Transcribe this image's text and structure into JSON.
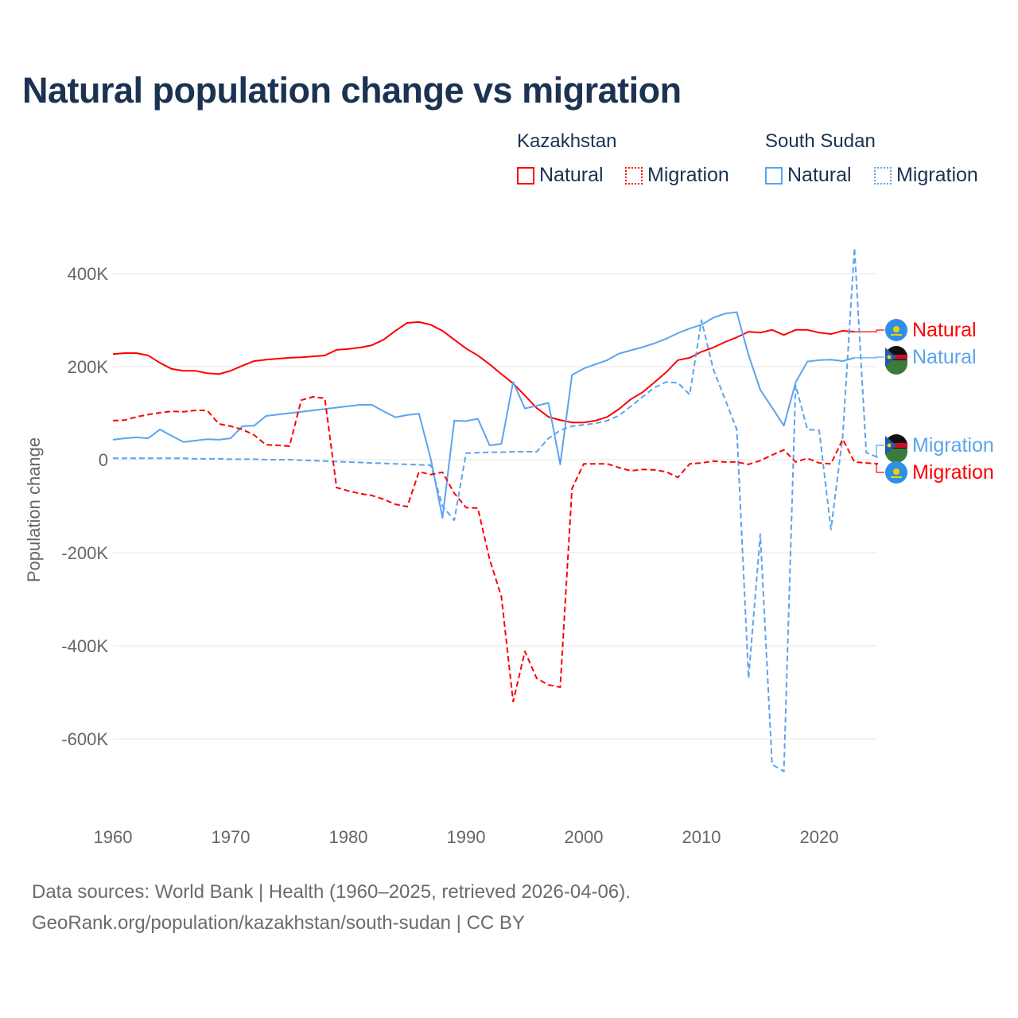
{
  "title": "Natural population change vs migration",
  "legend": {
    "groups": [
      {
        "name": "Kazakhstan",
        "items": [
          {
            "label": "Natural",
            "style": "solid"
          },
          {
            "label": "Migration",
            "style": "dotted"
          }
        ],
        "color": "#ff0000"
      },
      {
        "name": "South Sudan",
        "items": [
          {
            "label": "Natural",
            "style": "solid"
          },
          {
            "label": "Migration",
            "style": "dotted"
          }
        ],
        "color": "#5ba4ee"
      }
    ]
  },
  "footer": {
    "line1": "Data sources: World Bank | Health (1960–2025, retrieved 2026-04-06).",
    "line2": "GeoRank.org/population/kazakhstan/south-sudan | CC BY"
  },
  "chart_data": {
    "type": "line",
    "title": "Natural population change vs migration",
    "xlabel": "",
    "ylabel": "Population change",
    "xlim": [
      1960,
      2025
    ],
    "ylim": [
      -700000,
      480000
    ],
    "xticks": [
      1960,
      1970,
      1980,
      1990,
      2000,
      2010,
      2020
    ],
    "xtick_labels": [
      "1960",
      "1970",
      "1980",
      "1990",
      "2000",
      "2010",
      "2020"
    ],
    "yticks": [
      400000,
      200000,
      0,
      -200000,
      -400000,
      -600000
    ],
    "ytick_labels": [
      "400K",
      "200K",
      "0",
      "-200K",
      "-400K",
      "-600K"
    ],
    "grid": true,
    "series": [
      {
        "name": "Kazakhstan Natural",
        "end_label": "Natural",
        "color": "#ff0000",
        "dash": false,
        "start": 1960,
        "values_k": [
          227,
          229,
          229,
          224,
          208,
          195,
          191,
          191,
          186,
          184,
          191,
          202,
          212,
          215,
          217,
          219,
          220,
          222,
          224,
          236,
          238,
          241,
          246,
          258,
          277,
          294,
          296,
          290,
          277,
          258,
          239,
          224,
          205,
          184,
          164,
          138,
          111,
          92,
          85,
          80,
          80,
          84,
          92,
          109,
          130,
          145,
          166,
          188,
          214,
          219,
          232,
          241,
          253,
          263,
          275,
          273,
          279,
          268,
          279,
          279,
          273,
          270,
          277,
          275
        ]
      },
      {
        "name": "South Sudan Natural",
        "end_label": "Natural",
        "color": "#5ba4ee",
        "dash": false,
        "start": 1960,
        "values_k": [
          43,
          46,
          48,
          46,
          65,
          51,
          38,
          41,
          44,
          43,
          46,
          72,
          73,
          94,
          97,
          100,
          103,
          106,
          109,
          112,
          115,
          118,
          118,
          104,
          91,
          96,
          99,
          2,
          -125,
          84,
          83,
          88,
          31,
          34,
          167,
          110,
          116,
          122,
          -10,
          182,
          196,
          205,
          214,
          228,
          235,
          242,
          250,
          260,
          272,
          282,
          290,
          305,
          314,
          317,
          225,
          150,
          112,
          73,
          166,
          211,
          214,
          215,
          212,
          219
        ]
      },
      {
        "name": "South Sudan Migration",
        "end_label": "Migration",
        "color": "#5ba4ee",
        "dash": true,
        "start": 1960,
        "values_k": [
          3,
          3,
          3,
          3,
          3,
          3,
          3,
          2,
          2,
          2,
          1,
          1,
          1,
          0,
          0,
          0,
          -1,
          -2,
          -3,
          -4,
          -5,
          -6,
          -7,
          -8,
          -9,
          -10,
          -11,
          -12,
          -100,
          -130,
          14,
          15,
          16,
          16,
          17,
          17,
          17,
          46,
          63,
          72,
          75,
          78,
          84,
          95,
          115,
          135,
          155,
          167,
          165,
          140,
          300,
          195,
          130,
          65,
          -470,
          -160,
          -655,
          -670,
          160,
          65,
          63,
          -150,
          50,
          455,
          15,
          5
        ]
      },
      {
        "name": "Kazakhstan Migration",
        "end_label": "Migration",
        "color": "#ff0000",
        "dash": true,
        "start": 1960,
        "values_k": [
          84,
          85,
          92,
          97,
          101,
          104,
          103,
          106,
          106,
          77,
          72,
          65,
          53,
          32,
          31,
          29,
          128,
          135,
          132,
          -60,
          -67,
          -73,
          -77,
          -85,
          -96,
          -101,
          -26,
          -32,
          -27,
          -72,
          -103,
          -104,
          -214,
          -294,
          -520,
          -412,
          -470,
          -484,
          -489,
          -62,
          -9,
          -9,
          -9,
          -17,
          -24,
          -21,
          -22,
          -26,
          -38,
          -9,
          -7,
          -3,
          -5,
          -5,
          -10,
          -2,
          10,
          21,
          -5,
          3,
          -7,
          -9,
          44,
          -5,
          -7,
          -9
        ]
      }
    ]
  }
}
